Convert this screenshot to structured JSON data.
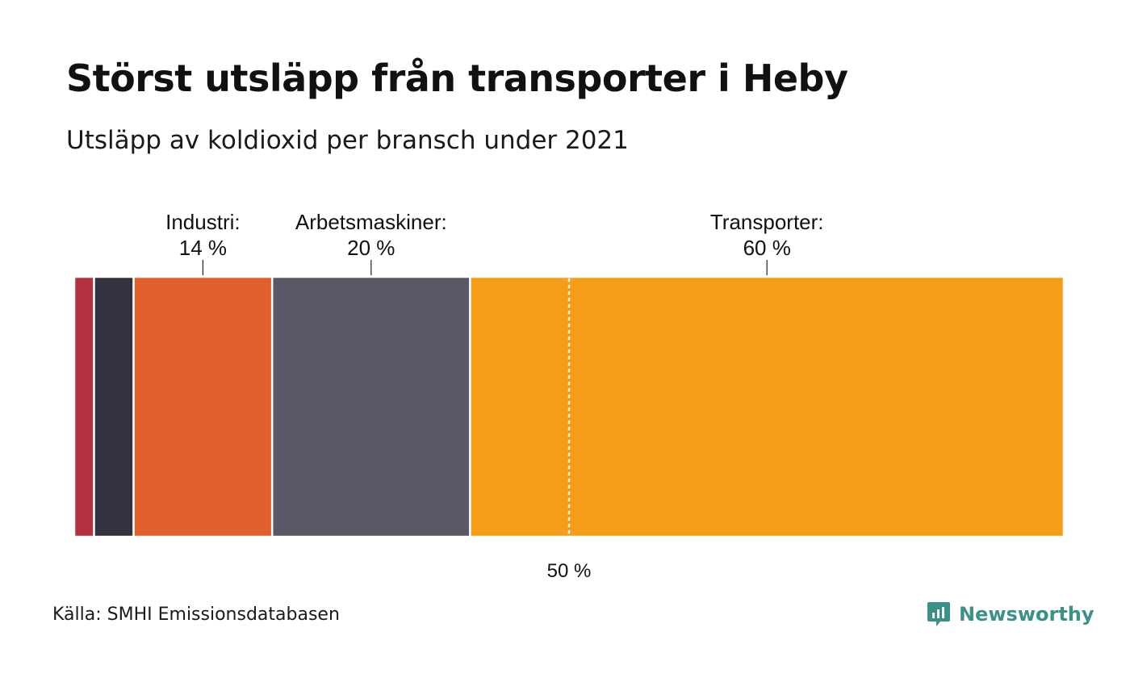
{
  "header": {
    "title": "Störst utsläpp från transporter i Heby",
    "subtitle": "Utsläpp av koldioxid per bransch under 2021"
  },
  "chart_data": {
    "type": "bar",
    "orientation": "horizontal-stacked",
    "stacked_to": 100,
    "categories": [
      "",
      "",
      "Industri",
      "Arbetsmaskiner",
      "Transporter"
    ],
    "label_names": [
      "",
      "",
      "Industri:",
      "Arbetsmaskiner:",
      "Transporter:"
    ],
    "label_values": [
      "",
      "",
      "14 %",
      "20 %",
      "60 %"
    ],
    "values": [
      2,
      4,
      14,
      20,
      60
    ],
    "colors": [
      "#b5313f",
      "#33303f",
      "#e05f2c",
      "#5a5866",
      "#f59d19"
    ],
    "reference_line": {
      "value": 50,
      "label": "50 %"
    }
  },
  "footer": {
    "source_label": "Källa:",
    "source": "SMHI Emissionsdatabasen",
    "brand": "Newsworthy",
    "brand_color": "#3a9187",
    "brand_icon": "newsworthy-logo-icon"
  }
}
